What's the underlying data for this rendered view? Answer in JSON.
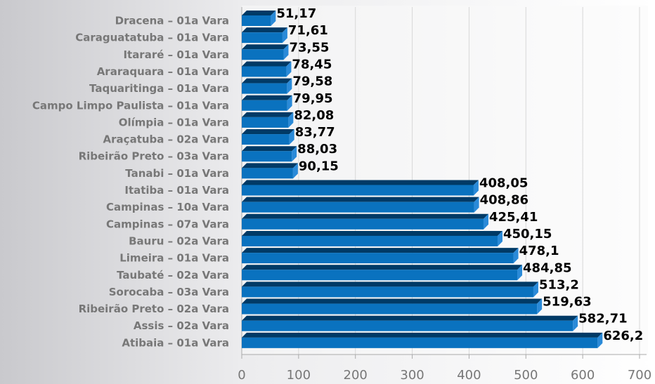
{
  "chart_data": {
    "type": "bar",
    "orientation": "horizontal",
    "categories": [
      "Dracena – 01a Vara",
      "Caraguatatuba – 01a Vara",
      "Itararé – 01a Vara",
      "Araraquara – 01a Vara",
      "Taquaritinga – 01a Vara",
      "Campo Limpo Paulista – 01a Vara",
      "Olímpia – 01a Vara",
      "Araçatuba – 02a Vara",
      "Ribeirão Preto – 03a Vara",
      "Tanabi – 01a Vara",
      "Itatiba – 01a Vara",
      "Campinas – 10a Vara",
      "Campinas – 07a Vara",
      "Bauru – 02a Vara",
      "Limeira – 01a Vara",
      "Taubaté – 02a Vara",
      "Sorocaba – 03a Vara",
      "Ribeirão Preto – 02a Vara",
      "Assis – 02a Vara",
      "Atibaia – 01a Vara"
    ],
    "values": [
      51.17,
      71.61,
      73.55,
      78.45,
      79.58,
      79.95,
      82.08,
      83.77,
      88.03,
      90.15,
      408.05,
      408.86,
      425.41,
      450.15,
      478.1,
      484.85,
      513.2,
      519.63,
      582.71,
      626.2
    ],
    "value_labels": [
      "51,17",
      "71,61",
      "73,55",
      "78,45",
      "79,58",
      "79,95",
      "82,08",
      "83,77",
      "88,03",
      "90,15",
      "408,05",
      "408,86",
      "425,41",
      "450,15",
      "478,1",
      "484,85",
      "513,2",
      "519,63",
      "582,71",
      "626,2"
    ],
    "color": "#0a72bf",
    "top_color": "#003a66",
    "xlim": [
      0,
      700
    ],
    "xticks": [
      0,
      100,
      200,
      300,
      400,
      500,
      600,
      700
    ],
    "grid": true
  }
}
